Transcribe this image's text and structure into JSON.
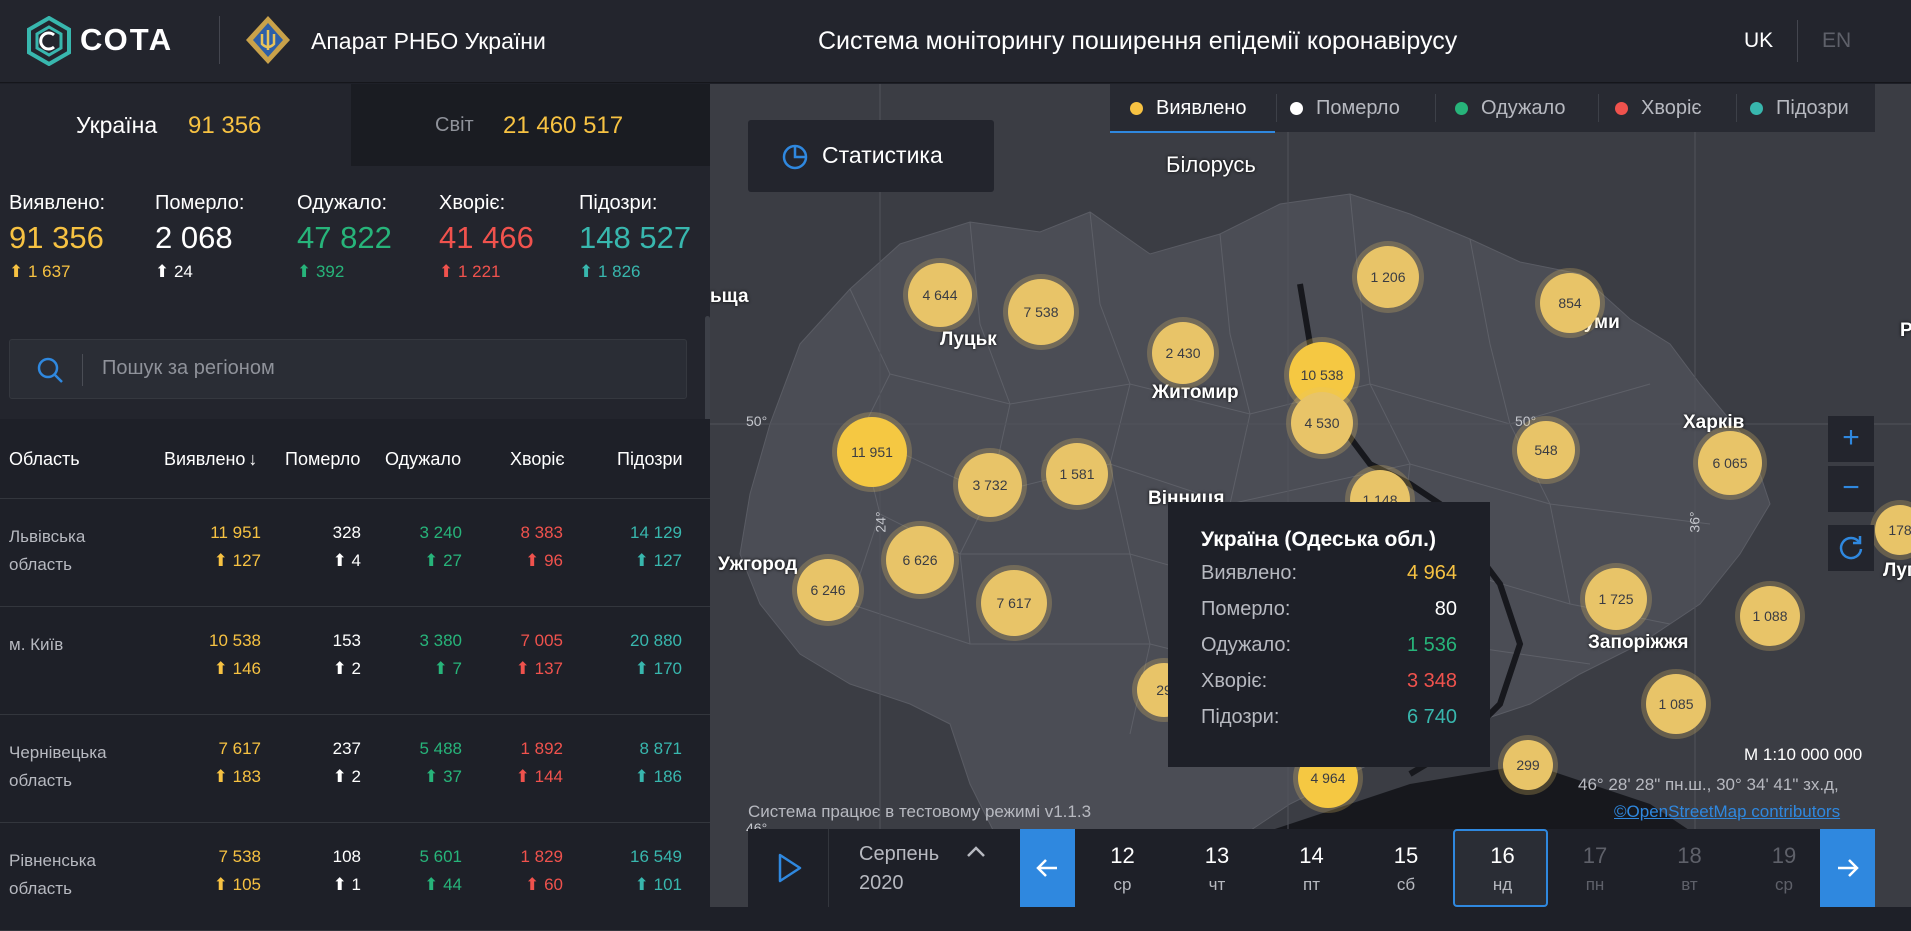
{
  "header": {
    "logo_text": "СОТА",
    "org_name": "Апарат РНБО України",
    "title": "Система моніторингу поширення епідемії коронавірусу",
    "lang_uk": "UK",
    "lang_en": "EN"
  },
  "tabs": {
    "ukraine_label": "Україна",
    "ukraine_value": "91 356",
    "world_label": "Світ",
    "world_value": "21 460 517"
  },
  "summary": [
    {
      "label": "Виявлено:",
      "value": "91 356",
      "delta": "1 637",
      "color": "#f7c242"
    },
    {
      "label": "Померло:",
      "value": "2 068",
      "delta": "24",
      "color": "#ffffff"
    },
    {
      "label": "Одужало:",
      "value": "47 822",
      "delta": "392",
      "color": "#27b47a"
    },
    {
      "label": "Хворіє:",
      "value": "41 466",
      "delta": "1 221",
      "color": "#f0524d"
    },
    {
      "label": "Підозри:",
      "value": "148 527",
      "delta": "1 826",
      "color": "#38b7ae"
    }
  ],
  "search": {
    "placeholder": "Пошук за регіоном"
  },
  "table": {
    "headers": [
      "Область",
      "Виявлено",
      "Померло",
      "Одужало",
      "Хворіє",
      "Підозри"
    ],
    "rows": [
      {
        "name": "Львівська область",
        "values": [
          "11 951",
          "328",
          "3 240",
          "8 383",
          "14 129"
        ],
        "deltas": [
          "127",
          "4",
          "27",
          "96",
          "127"
        ]
      },
      {
        "name": "м. Київ",
        "values": [
          "10 538",
          "153",
          "3 380",
          "7 005",
          "20 880"
        ],
        "deltas": [
          "146",
          "2",
          "7",
          "137",
          "170"
        ]
      },
      {
        "name": "Чернівецька область",
        "values": [
          "7 617",
          "237",
          "5 488",
          "1 892",
          "8 871"
        ],
        "deltas": [
          "183",
          "2",
          "37",
          "144",
          "186"
        ]
      },
      {
        "name": "Рівненська область",
        "values": [
          "7 538",
          "108",
          "5 601",
          "1 829",
          "16 549"
        ],
        "deltas": [
          "105",
          "1",
          "44",
          "60",
          "101"
        ]
      }
    ]
  },
  "legend": [
    {
      "label": "Виявлено",
      "color": "#f7c242"
    },
    {
      "label": "Померло",
      "color": "#ffffff"
    },
    {
      "label": "Одужало",
      "color": "#27b47a"
    },
    {
      "label": "Хворіє",
      "color": "#f0524d"
    },
    {
      "label": "Підозри",
      "color": "#38b7ae"
    }
  ],
  "stat_button": "Статистика",
  "map": {
    "place_labels": [
      {
        "text": "Білорусь"
      },
      {
        "text": "Луцьк"
      },
      {
        "text": "Житомир"
      },
      {
        "text": "Суми"
      },
      {
        "text": "Харків"
      },
      {
        "text": "Вінниця"
      },
      {
        "text": "Ужгород"
      },
      {
        "text": "Запоріжжя"
      },
      {
        "text": "ьща"
      },
      {
        "text": "Р"
      },
      {
        "text": "Луг"
      }
    ],
    "grid_labels": [
      "50°",
      "50°",
      "24°",
      "36°",
      "46°"
    ],
    "clusters": [
      "4 644",
      "7 538",
      "2 430",
      "1 206",
      "854",
      "10 538",
      "4 530",
      "11 951",
      "3 732",
      "1 581",
      "548",
      "6 065",
      "1 148",
      "6 626",
      "6 246",
      "7 617",
      "1 725",
      "1 088",
      "1 085",
      "299",
      "4 964",
      "29",
      "178"
    ],
    "scale": "М 1:10 000 000",
    "coords": "46° 28' 28\" пн.ш., 30° 34' 41\" зх.д,",
    "osm": "©OpenStreetMap contributors",
    "system_note": "Система працює в тестовому режимі v1.1.3"
  },
  "tooltip": {
    "title": "Україна (Одеська обл.)",
    "rows": [
      {
        "label": "Виявлено:",
        "value": "4 964",
        "color": "#f7c242"
      },
      {
        "label": "Померло:",
        "value": "80",
        "color": "#ffffff"
      },
      {
        "label": "Одужало:",
        "value": "1 536",
        "color": "#27b47a"
      },
      {
        "label": "Хворіє:",
        "value": "3 348",
        "color": "#f0524d"
      },
      {
        "label": "Підозри:",
        "value": "6 740",
        "color": "#38b7ae"
      }
    ]
  },
  "timeline": {
    "month": "Серпень",
    "year": "2020",
    "days": [
      {
        "num": "12",
        "wd": "ср"
      },
      {
        "num": "13",
        "wd": "чт"
      },
      {
        "num": "14",
        "wd": "пт"
      },
      {
        "num": "15",
        "wd": "сб"
      },
      {
        "num": "16",
        "wd": "нд",
        "selected": true
      },
      {
        "num": "17",
        "wd": "пн",
        "future": true
      },
      {
        "num": "18",
        "wd": "вт",
        "future": true
      },
      {
        "num": "19",
        "wd": "ср",
        "future": true
      }
    ]
  }
}
